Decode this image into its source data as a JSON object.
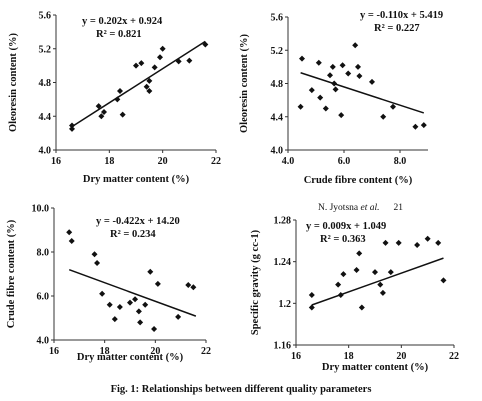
{
  "header_note": {
    "author": "N. Jyotsna",
    "etal": "et al.",
    "page": "21"
  },
  "caption": "Fig. 1: Relationships between different quality parameters",
  "chart_data": [
    {
      "type": "scatter",
      "xlabel": "Dry matter content (%)",
      "ylabel": "Oleoresin content (%)",
      "xlim": [
        16,
        22
      ],
      "ylim": [
        4.0,
        5.6
      ],
      "xticks": [
        16,
        18,
        20,
        22
      ],
      "xtick_labels": [
        "16",
        "18",
        "20",
        "22"
      ],
      "yticks": [
        4.0,
        4.4,
        4.8,
        5.2,
        5.6
      ],
      "ytick_labels": [
        "4.0",
        "4.4",
        "4.8",
        "5.2",
        "5.6"
      ],
      "equation": "y = 0.202x + 0.924",
      "r2": "R² = 0.821",
      "trendline": {
        "slope": 0.202,
        "intercept": 0.924,
        "x_range": [
          16.6,
          21.6
        ]
      },
      "points": [
        {
          "x": 16.6,
          "y": 4.29
        },
        {
          "x": 16.6,
          "y": 4.25
        },
        {
          "x": 17.6,
          "y": 4.52
        },
        {
          "x": 17.7,
          "y": 4.4
        },
        {
          "x": 17.8,
          "y": 4.45
        },
        {
          "x": 18.3,
          "y": 4.6
        },
        {
          "x": 18.4,
          "y": 4.7
        },
        {
          "x": 18.5,
          "y": 4.42
        },
        {
          "x": 19.0,
          "y": 5.0
        },
        {
          "x": 19.2,
          "y": 5.03
        },
        {
          "x": 19.4,
          "y": 4.75
        },
        {
          "x": 19.5,
          "y": 4.82
        },
        {
          "x": 19.5,
          "y": 4.7
        },
        {
          "x": 19.7,
          "y": 4.98
        },
        {
          "x": 19.9,
          "y": 5.1
        },
        {
          "x": 20.0,
          "y": 5.2
        },
        {
          "x": 20.6,
          "y": 5.05
        },
        {
          "x": 21.0,
          "y": 5.06
        },
        {
          "x": 21.6,
          "y": 5.25
        }
      ]
    },
    {
      "type": "scatter",
      "xlabel": "Crude fibre content (%)",
      "ylabel": "Oleoresin content (%)",
      "xlim": [
        4.0,
        9.0
      ],
      "ylim": [
        4.0,
        5.6
      ],
      "xticks": [
        4.0,
        6.0,
        8.0
      ],
      "xtick_labels": [
        "4.0",
        "6.0",
        "8.0"
      ],
      "yticks": [
        4.0,
        4.4,
        4.8,
        5.2,
        5.6
      ],
      "ytick_labels": [
        "4.0",
        "4.4",
        "4.8",
        "5.2",
        "5.6"
      ],
      "equation": "y = -0.110x + 5.419",
      "r2": "R² = 0.227",
      "trendline": {
        "slope": -0.11,
        "intercept": 5.419,
        "x_range": [
          4.45,
          8.85
        ]
      },
      "points": [
        {
          "x": 4.5,
          "y": 5.1
        },
        {
          "x": 4.45,
          "y": 4.52
        },
        {
          "x": 4.85,
          "y": 4.72
        },
        {
          "x": 5.1,
          "y": 5.05
        },
        {
          "x": 5.15,
          "y": 4.63
        },
        {
          "x": 5.35,
          "y": 4.5
        },
        {
          "x": 5.5,
          "y": 4.9
        },
        {
          "x": 5.6,
          "y": 5.0
        },
        {
          "x": 5.65,
          "y": 4.8
        },
        {
          "x": 5.7,
          "y": 4.73
        },
        {
          "x": 5.9,
          "y": 4.42
        },
        {
          "x": 5.95,
          "y": 5.02
        },
        {
          "x": 6.15,
          "y": 4.92
        },
        {
          "x": 6.4,
          "y": 5.26
        },
        {
          "x": 6.5,
          "y": 5.0
        },
        {
          "x": 6.55,
          "y": 4.89
        },
        {
          "x": 7.0,
          "y": 4.82
        },
        {
          "x": 7.4,
          "y": 4.4
        },
        {
          "x": 7.75,
          "y": 4.52
        },
        {
          "x": 8.55,
          "y": 4.28
        },
        {
          "x": 8.85,
          "y": 4.3
        }
      ]
    },
    {
      "type": "scatter",
      "xlabel": "Dry matter content (%)",
      "ylabel": "Crude fibre content (%)",
      "xlim": [
        16,
        22
      ],
      "ylim": [
        4.0,
        10.0
      ],
      "xticks": [
        16,
        18,
        20,
        22
      ],
      "xtick_labels": [
        "16",
        "18",
        "20",
        "22"
      ],
      "yticks": [
        4.0,
        6.0,
        8.0,
        10.0
      ],
      "ytick_labels": [
        "4.0",
        "6.0",
        "8.0",
        "10.0"
      ],
      "equation": "y = -0.422x + 14.20",
      "r2": "R² = 0.234",
      "trendline": {
        "slope": -0.422,
        "intercept": 14.2,
        "x_range": [
          16.6,
          21.6
        ]
      },
      "points": [
        {
          "x": 16.6,
          "y": 8.9
        },
        {
          "x": 16.7,
          "y": 8.5
        },
        {
          "x": 17.6,
          "y": 7.9
        },
        {
          "x": 17.7,
          "y": 7.5
        },
        {
          "x": 17.9,
          "y": 6.1
        },
        {
          "x": 18.2,
          "y": 5.6
        },
        {
          "x": 18.4,
          "y": 4.95
        },
        {
          "x": 18.6,
          "y": 5.5
        },
        {
          "x": 19.0,
          "y": 5.7
        },
        {
          "x": 19.2,
          "y": 5.85
        },
        {
          "x": 19.35,
          "y": 5.3
        },
        {
          "x": 19.4,
          "y": 4.8
        },
        {
          "x": 19.6,
          "y": 5.6
        },
        {
          "x": 19.8,
          "y": 7.1
        },
        {
          "x": 19.95,
          "y": 4.5
        },
        {
          "x": 20.1,
          "y": 6.55
        },
        {
          "x": 20.9,
          "y": 5.05
        },
        {
          "x": 21.3,
          "y": 6.5
        },
        {
          "x": 21.5,
          "y": 6.4
        }
      ]
    },
    {
      "type": "scatter",
      "xlabel": "Dry matter content (%)",
      "ylabel": "Specific gravity (g cc-1)",
      "xlim": [
        16,
        22
      ],
      "ylim": [
        1.16,
        1.28
      ],
      "xticks": [
        16,
        18,
        20,
        22
      ],
      "xtick_labels": [
        "16",
        "18",
        "20",
        "22"
      ],
      "yticks": [
        1.16,
        1.2,
        1.24,
        1.28
      ],
      "ytick_labels": [
        "1.16",
        "1.2",
        "1.24",
        "1.28"
      ],
      "equation": "y = 0.009x + 1.049",
      "r2": "R² = 0.363",
      "trendline": {
        "slope": 0.009,
        "intercept": 1.049,
        "x_range": [
          16.6,
          21.6
        ]
      },
      "points": [
        {
          "x": 16.6,
          "y": 1.208
        },
        {
          "x": 16.6,
          "y": 1.196
        },
        {
          "x": 17.6,
          "y": 1.218
        },
        {
          "x": 17.7,
          "y": 1.208
        },
        {
          "x": 17.8,
          "y": 1.228
        },
        {
          "x": 18.3,
          "y": 1.232
        },
        {
          "x": 18.4,
          "y": 1.248
        },
        {
          "x": 18.5,
          "y": 1.196
        },
        {
          "x": 19.0,
          "y": 1.23
        },
        {
          "x": 19.2,
          "y": 1.218
        },
        {
          "x": 19.3,
          "y": 1.21
        },
        {
          "x": 19.4,
          "y": 1.258
        },
        {
          "x": 19.6,
          "y": 1.23
        },
        {
          "x": 19.9,
          "y": 1.258
        },
        {
          "x": 20.6,
          "y": 1.256
        },
        {
          "x": 21.0,
          "y": 1.262
        },
        {
          "x": 21.4,
          "y": 1.258
        },
        {
          "x": 21.6,
          "y": 1.222
        }
      ]
    }
  ]
}
